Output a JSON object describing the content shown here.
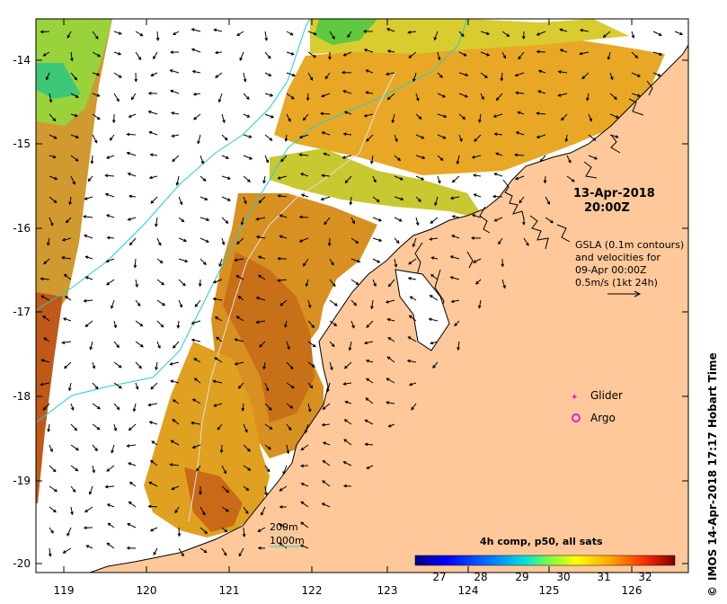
{
  "map": {
    "date_title": "13-Apr-2018",
    "time_title": "20:00Z",
    "gsla_lines": [
      "GSLA (0.1m contours)",
      "and velocities for",
      "09-Apr 00:00Z",
      "0.5m/s (1kt 24h)"
    ],
    "legend": {
      "glider_label": "Glider",
      "argo_label": "Argo",
      "glider_color": "#e020e0",
      "argo_color": "#e020e0"
    },
    "depth_legend": {
      "line1": "200m",
      "line2": "1000m",
      "color_200": "#cccccc",
      "color_1000": "#20d0d0"
    },
    "colorbar": {
      "title": "4h comp, p50, all sats",
      "ticks": [
        "27",
        "28",
        "29",
        "30",
        "31",
        "32"
      ],
      "colors": [
        "#00007f",
        "#0000ff",
        "#007fff",
        "#00ffff",
        "#7fff7f",
        "#ffff00",
        "#ff7f00",
        "#ff0000",
        "#7f0000"
      ]
    },
    "credit": "IMOS 14-Apr-2018 17:17 Hobart Time",
    "credit_symbol": "©",
    "x_ticks": [
      "119",
      "120",
      "121",
      "122",
      "123",
      "124",
      "125",
      "126"
    ],
    "y_ticks": [
      "-14",
      "-15",
      "-16",
      "-17",
      "-18",
      "-19",
      "-20"
    ],
    "colors": {
      "land": "#fec89a",
      "ocean_blank": "#ffffff",
      "sst_warm": "#e8a020",
      "sst_hot": "#c86010",
      "sst_yellow": "#e8c828",
      "sst_green": "#9ad23c",
      "contour_1000": "#20d0d0",
      "coast": "#000000"
    }
  }
}
